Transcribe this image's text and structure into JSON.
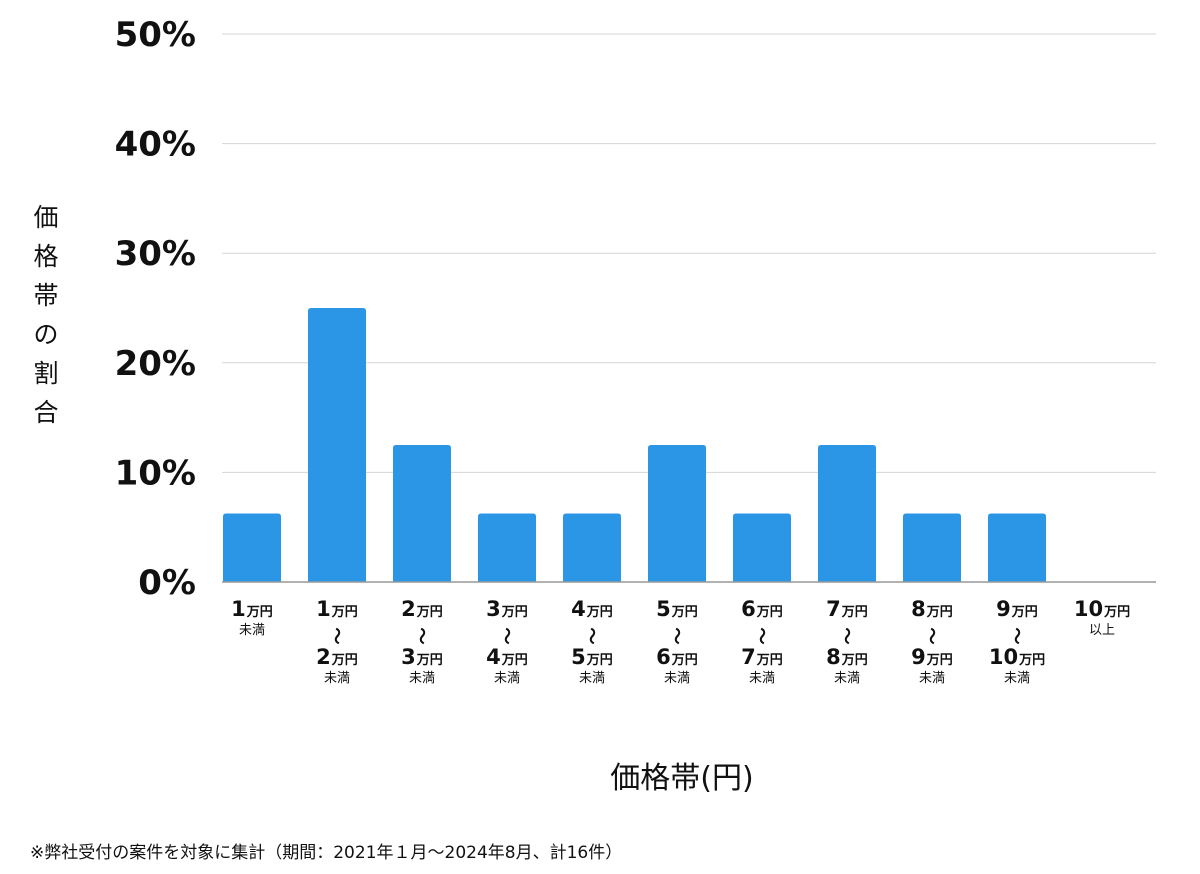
{
  "chart_data": {
    "type": "bar",
    "title": "",
    "xlabel": "価格帯(円)",
    "ylabel": "価格帯の割合",
    "ylim": [
      0,
      50
    ],
    "yticks": [
      "0%",
      "10%",
      "20%",
      "30%",
      "40%",
      "50%"
    ],
    "grid": true,
    "bar_color": "#2B96E6",
    "categories": [
      {
        "lines": [
          {
            "n": "1",
            "u": "万円"
          },
          {
            "t": "未満"
          }
        ]
      },
      {
        "lines": [
          {
            "n": "1",
            "u": "万円"
          },
          {
            "t": "〜"
          },
          {
            "n": "2",
            "u": "万円"
          },
          {
            "t": "未満"
          }
        ]
      },
      {
        "lines": [
          {
            "n": "2",
            "u": "万円"
          },
          {
            "t": "〜"
          },
          {
            "n": "3",
            "u": "万円"
          },
          {
            "t": "未満"
          }
        ]
      },
      {
        "lines": [
          {
            "n": "3",
            "u": "万円"
          },
          {
            "t": "〜"
          },
          {
            "n": "4",
            "u": "万円"
          },
          {
            "t": "未満"
          }
        ]
      },
      {
        "lines": [
          {
            "n": "4",
            "u": "万円"
          },
          {
            "t": "〜"
          },
          {
            "n": "5",
            "u": "万円"
          },
          {
            "t": "未満"
          }
        ]
      },
      {
        "lines": [
          {
            "n": "5",
            "u": "万円"
          },
          {
            "t": "〜"
          },
          {
            "n": "6",
            "u": "万円"
          },
          {
            "t": "未満"
          }
        ]
      },
      {
        "lines": [
          {
            "n": "6",
            "u": "万円"
          },
          {
            "t": "〜"
          },
          {
            "n": "7",
            "u": "万円"
          },
          {
            "t": "未満"
          }
        ]
      },
      {
        "lines": [
          {
            "n": "7",
            "u": "万円"
          },
          {
            "t": "〜"
          },
          {
            "n": "8",
            "u": "万円"
          },
          {
            "t": "未満"
          }
        ]
      },
      {
        "lines": [
          {
            "n": "8",
            "u": "万円"
          },
          {
            "t": "〜"
          },
          {
            "n": "9",
            "u": "万円"
          },
          {
            "t": "未満"
          }
        ]
      },
      {
        "lines": [
          {
            "n": "9",
            "u": "万円"
          },
          {
            "t": "〜"
          },
          {
            "n": "10",
            "u": "万円"
          },
          {
            "t": "未満"
          }
        ]
      },
      {
        "lines": [
          {
            "n": "10",
            "u": "万円"
          },
          {
            "t": "以上"
          }
        ]
      }
    ],
    "values": [
      6.25,
      25,
      12.5,
      6.25,
      6.25,
      12.5,
      6.25,
      12.5,
      6.25,
      6.25,
      0
    ]
  },
  "footnote": "※弊社受付の案件を対象に集計（期間：2021年１月〜2024年8月、計16件）"
}
